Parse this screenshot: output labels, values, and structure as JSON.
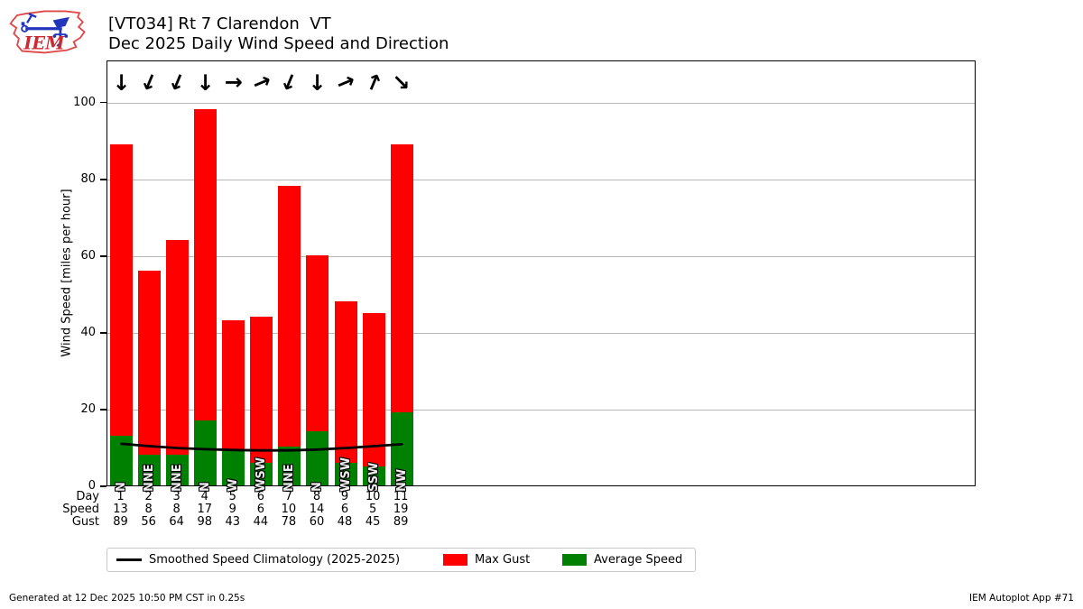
{
  "header": {
    "logo_text": "IEM",
    "title_line1": "[VT034] Rt 7 Clarendon  VT",
    "title_line2": "Dec 2025 Daily Wind Speed and Direction"
  },
  "footer": {
    "generated_text": "Generated at 12 Dec 2025 10:50 PM CST in 0.25s",
    "app_text": "IEM Autoplot App #71"
  },
  "chart_data": {
    "type": "bar",
    "title": "Dec 2025 Daily Wind Speed and Direction",
    "station": "[VT034] Rt 7 Clarendon  VT",
    "xlabel": "",
    "ylabel": "Wind Speed [miles per hour]",
    "ylim": [
      0,
      111
    ],
    "yticks": [
      0,
      20,
      40,
      60,
      80,
      100
    ],
    "xlim": [
      0.5,
      31.5
    ],
    "grid": true,
    "grid_color": "#b8b8b8",
    "legend_position": "below",
    "arrow_row_y": 105.5,
    "days": [
      1,
      2,
      3,
      4,
      5,
      6,
      7,
      8,
      9,
      10,
      11
    ],
    "directions": [
      "N",
      "NNE",
      "NNE",
      "N",
      "W",
      "WSW",
      "NNE",
      "N",
      "WSW",
      "SSW",
      "NW"
    ],
    "direction_degrees": [
      0,
      22.5,
      22.5,
      0,
      270,
      247.5,
      22.5,
      0,
      247.5,
      202.5,
      315
    ],
    "series": [
      {
        "name": "Max Gust",
        "type": "bar",
        "color": "#ff0000",
        "values": [
          89,
          56,
          64,
          98,
          43,
          44,
          78,
          60,
          48,
          45,
          89
        ]
      },
      {
        "name": "Average Speed",
        "type": "bar",
        "color": "#008000",
        "values": [
          13,
          8,
          8,
          17,
          9,
          6,
          10,
          14,
          6,
          5,
          19
        ]
      },
      {
        "name": "Smoothed Speed Climatology (2025-2025)",
        "type": "line",
        "color": "#000000",
        "values": [
          11.3,
          10.7,
          10.2,
          9.9,
          9.7,
          9.6,
          9.6,
          9.8,
          10.2,
          10.7,
          11.2
        ]
      }
    ],
    "table": {
      "rows": [
        {
          "label": "Day",
          "values": [
            "1",
            "2",
            "3",
            "4",
            "5",
            "6",
            "7",
            "8",
            "9",
            "10",
            "11"
          ]
        },
        {
          "label": "Speed",
          "values": [
            "13",
            "8",
            "8",
            "17",
            "9",
            "6",
            "10",
            "14",
            "6",
            "5",
            "19"
          ]
        },
        {
          "label": "Gust",
          "values": [
            "89",
            "56",
            "64",
            "98",
            "43",
            "44",
            "78",
            "60",
            "48",
            "45",
            "89"
          ]
        }
      ]
    },
    "legend": {
      "items": [
        {
          "label": "Smoothed Speed Climatology (2025-2025)",
          "swatch": "line",
          "color": "#000000"
        },
        {
          "label": "Max Gust",
          "swatch": "rect",
          "color": "#ff0000"
        },
        {
          "label": "Average Speed",
          "swatch": "rect",
          "color": "#008000"
        }
      ]
    }
  }
}
